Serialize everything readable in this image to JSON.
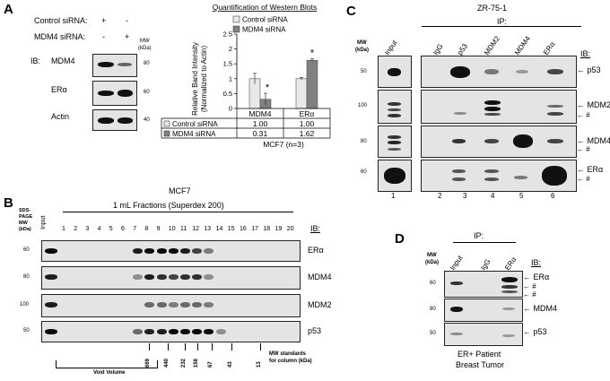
{
  "panel_a": {
    "letter": "A",
    "control_sirna_label": "Control siRNA:",
    "mdm4_sirna_label": "MDM4 siRNA:",
    "lane1_control": "+",
    "lane1_mdm4": "-",
    "lane2_control": "-",
    "lane2_mdm4": "+",
    "mw_label": "MW",
    "kda_label": "(kDa)",
    "ib_label": "IB:",
    "blots": [
      {
        "label": "MDM4",
        "mw": "80"
      },
      {
        "label": "ERα",
        "mw": "60"
      },
      {
        "label": "Actin",
        "mw": "40"
      }
    ]
  },
  "chart_data": {
    "type": "bar",
    "title": "Quantification of Western Blots",
    "ylabel": "Relative Band Intensity (Normalized to Actin)",
    "ylabel_line1": "Relative Band Intensity",
    "ylabel_line2": "(Normalized to Actin)",
    "xlabel": "MCF7 (n=3)",
    "categories": [
      "MDM4",
      "ERα"
    ],
    "series": [
      {
        "name": "Control siRNA",
        "color": "#e8e8e8",
        "values": [
          1.0,
          1.0
        ],
        "display": [
          "1.00",
          "1.00"
        ],
        "errors": [
          0.18,
          0.04
        ]
      },
      {
        "name": "MDM4 siRNA",
        "color": "#808080",
        "values": [
          0.31,
          1.62
        ],
        "display": [
          "0.31",
          "1.62"
        ],
        "errors": [
          0.2,
          0.05
        ]
      }
    ],
    "ylim": [
      0,
      2.5
    ],
    "yticks": [
      "0",
      "0.5",
      "1",
      "1.5",
      "2",
      "2.5"
    ],
    "significance": [
      "*",
      "*"
    ],
    "legend_position": "top"
  },
  "panel_b": {
    "letter": "B",
    "title": "MCF7",
    "subtitle": "1 mL Fractions (Superdex 200)",
    "sds_label": [
      "SDS-",
      "PAGE",
      "MW",
      "(kDa)"
    ],
    "input_label": "Input",
    "fractions": [
      "1",
      "2",
      "3",
      "4",
      "5",
      "6",
      "7",
      "8",
      "9",
      "10",
      "11",
      "12",
      "13",
      "14",
      "15",
      "16",
      "17",
      "18",
      "19",
      "20"
    ],
    "ib_label": "IB:",
    "blots": [
      {
        "label": "ERα",
        "mw": "60"
      },
      {
        "label": "MDM4",
        "mw": "80"
      },
      {
        "label": "MDM2",
        "mw": "100"
      },
      {
        "label": "p53",
        "mw": "50"
      }
    ],
    "mw_standards": [
      "669",
      "440",
      "232",
      "158",
      "67",
      "43",
      "13"
    ],
    "mw_standards_caption_1": "MW standards",
    "mw_standards_caption_2": "for column (kDa)",
    "void_volume": "Void Volume"
  },
  "panel_c": {
    "letter": "C",
    "cell_line": "ZR-75-1",
    "ip_label": "IP:",
    "mw_label": "MW",
    "kda_label": "(kDa)",
    "ib_label": "IB:",
    "lanes": [
      "Input",
      "IgG",
      "p53",
      "MDM2",
      "MDM4",
      "ERα"
    ],
    "lane_numbers": [
      "1",
      "2",
      "3",
      "4",
      "5",
      "6"
    ],
    "blots": [
      {
        "label": "p53",
        "mw": "50"
      },
      {
        "label": "MDM2",
        "mw": "100",
        "extra": "#"
      },
      {
        "label": "MDM4",
        "mw": "80",
        "extra": "#"
      },
      {
        "label": "ERα",
        "mw": "60",
        "extra": "#"
      }
    ]
  },
  "panel_d": {
    "letter": "D",
    "ip_label": "IP:",
    "mw_label": "MW",
    "kda_label": "(kDa)",
    "ib_label": "IB:",
    "lanes": [
      "Input",
      "IgG",
      "ERα"
    ],
    "blots": [
      {
        "label": "ERα",
        "mw": "60",
        "extra1": "#",
        "extra2": "#"
      },
      {
        "label": "MDM4",
        "mw": "80"
      },
      {
        "label": "p53",
        "mw": "50"
      }
    ],
    "caption_1": "ER+ Patient",
    "caption_2": "Breast Tumor"
  }
}
